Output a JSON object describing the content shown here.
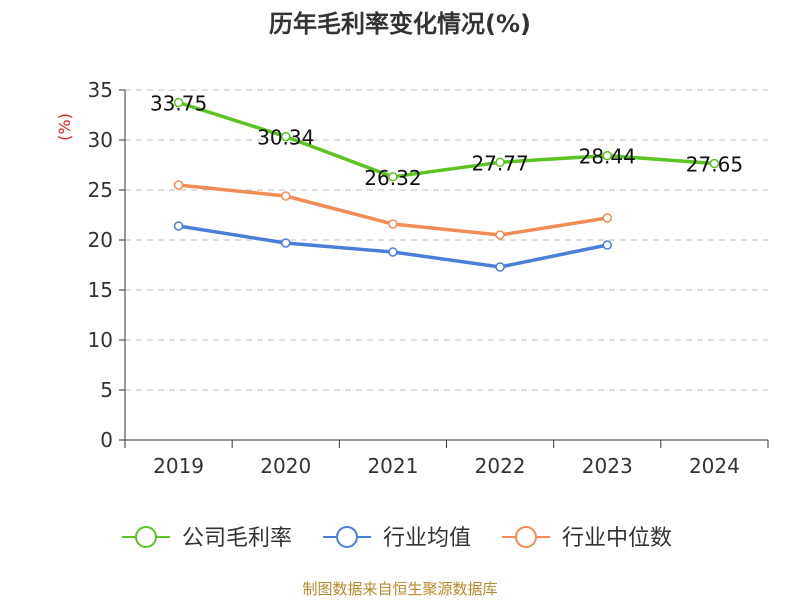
{
  "chart_data": {
    "type": "line",
    "title": "历年毛利率变化情况(%)",
    "ylabel": "(%)",
    "categories": [
      "2019",
      "2020",
      "2021",
      "2022",
      "2023",
      "2024"
    ],
    "ylim": [
      0,
      35
    ],
    "yticks": [
      0,
      5,
      10,
      15,
      20,
      25,
      30,
      35
    ],
    "grid": true,
    "legend_position": "bottom",
    "series": [
      {
        "name": "公司毛利率",
        "color": "#5cc422",
        "labels": [
          "33.75",
          "30.34",
          "26.32",
          "27.77",
          "28.44",
          "27.65"
        ],
        "values": [
          33.75,
          30.34,
          26.32,
          27.77,
          28.44,
          27.65
        ]
      },
      {
        "name": "行业均值",
        "color": "#4a7fd8",
        "values": [
          21.4,
          19.7,
          18.8,
          17.3,
          19.5,
          null
        ]
      },
      {
        "name": "行业中位数",
        "color": "#f28c55",
        "values": [
          25.5,
          24.4,
          21.6,
          20.5,
          22.2,
          null
        ]
      }
    ]
  },
  "source": "制图数据来自恒生聚源数据库"
}
